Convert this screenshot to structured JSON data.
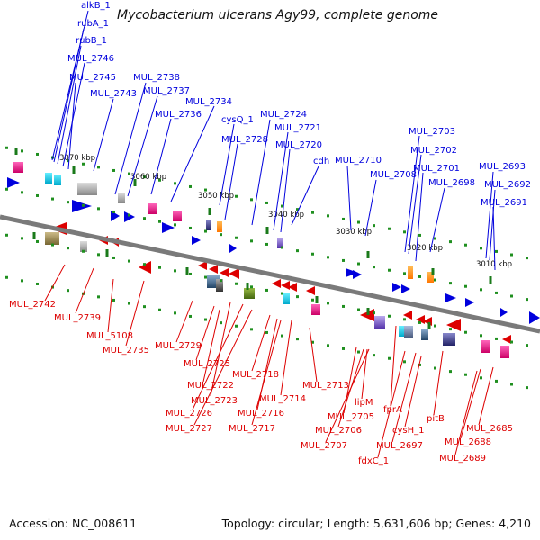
{
  "title": "Mycobacterium ulcerans Agy99, complete genome",
  "footer": {
    "accession": "Accession: NC_008611",
    "summary": "Topology: circular; Length: 5,631,606 bp; Genes: 4,210"
  },
  "colors": {
    "forward_strand": "#0000dd",
    "reverse_strand": "#dd0000",
    "backbone": "#7a7a7a",
    "tick_dots": "#1f8f1f"
  },
  "scale_labels": [
    "3070 kbp",
    "3060 kbp",
    "3050 kbp",
    "3040 kbp",
    "3030 kbp",
    "3020 kbp",
    "3010 kbp"
  ],
  "forward_labels": [
    "alkB_1",
    "rubA_1",
    "rubB_1",
    "MUL_2746",
    "MUL_2745",
    "MUL_2743",
    "MUL_2738",
    "MUL_2737",
    "MUL_2736",
    "MUL_2734",
    "cysQ_1",
    "MUL_2728",
    "MUL_2724",
    "MUL_2721",
    "MUL_2720",
    "cdh",
    "MUL_2710",
    "MUL_2708",
    "MUL_2703",
    "MUL_2702",
    "MUL_2701",
    "MUL_2698",
    "MUL_2693",
    "MUL_2692",
    "MUL_2691"
  ],
  "reverse_labels": [
    "MUL_2742",
    "MUL_2739",
    "MUL_5108",
    "MUL_2735",
    "MUL_2729",
    "MUL_2725",
    "MUL_2722",
    "MUL_2723",
    "MUL_2726",
    "MUL_2727",
    "MUL_2718",
    "MUL_2716",
    "MUL_2717",
    "MUL_2714",
    "MUL_2713",
    "MUL_2705",
    "MUL_2706",
    "MUL_2707",
    "lipM",
    "fprA",
    "fdxC_1",
    "MUL_2697",
    "cysH_1",
    "pitB",
    "MUL_2688",
    "MUL_2689",
    "MUL_2685"
  ]
}
